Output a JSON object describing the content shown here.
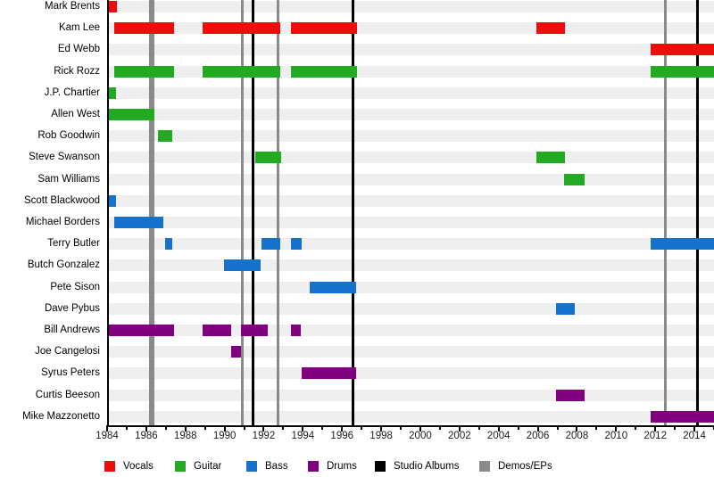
{
  "chart_data": {
    "type": "timeline",
    "subtype": "band-member-gantt",
    "axis": {
      "start": 1984,
      "end": 2015,
      "tick_labels": [
        1984,
        1986,
        1988,
        1990,
        1992,
        1994,
        1996,
        1998,
        2000,
        2002,
        2004,
        2006,
        2008,
        2010,
        2012,
        2014
      ],
      "minor_ticks_every_year": true
    },
    "colors": {
      "vocals": "#ee0d0d",
      "guitar": "#22aa22",
      "bass": "#1672cd",
      "drums": "#800080",
      "album_line": "#000000",
      "demo_line": "#8a8a8a",
      "row_band": "#efefef"
    },
    "members": [
      {
        "name": "Mark Brents",
        "instrument": "vocals",
        "periods": [
          [
            1984.1,
            1984.5
          ]
        ]
      },
      {
        "name": "Kam Lee",
        "instrument": "vocals",
        "periods": [
          [
            1984.35,
            1987.4
          ],
          [
            1988.9,
            1992.85
          ],
          [
            1993.4,
            1996.75
          ],
          [
            2005.95,
            2007.4
          ]
        ]
      },
      {
        "name": "Ed Webb",
        "instrument": "vocals",
        "periods": [
          [
            2011.75,
            2015
          ]
        ]
      },
      {
        "name": "Rick Rozz",
        "instrument": "guitar",
        "periods": [
          [
            1984.35,
            1987.4
          ],
          [
            1988.9,
            1992.85
          ],
          [
            1993.4,
            1996.75
          ],
          [
            2011.75,
            2015
          ]
        ]
      },
      {
        "name": "J.P. Chartier",
        "instrument": "guitar",
        "periods": [
          [
            1984.0,
            1984.45
          ]
        ]
      },
      {
        "name": "Allen West",
        "instrument": "guitar",
        "periods": [
          [
            1984.0,
            1986.4
          ]
        ]
      },
      {
        "name": "Rob Goodwin",
        "instrument": "guitar",
        "periods": [
          [
            1986.6,
            1987.35
          ]
        ]
      },
      {
        "name": "Steve Swanson",
        "instrument": "guitar",
        "periods": [
          [
            1991.55,
            1992.9
          ],
          [
            2005.95,
            2007.4
          ]
        ]
      },
      {
        "name": "Sam Williams",
        "instrument": "guitar",
        "periods": [
          [
            2007.35,
            2008.4
          ]
        ]
      },
      {
        "name": "Scott Blackwood",
        "instrument": "bass",
        "periods": [
          [
            1984.0,
            1984.45
          ]
        ]
      },
      {
        "name": "Michael Borders",
        "instrument": "bass",
        "periods": [
          [
            1984.35,
            1986.85
          ]
        ]
      },
      {
        "name": "Terry Butler",
        "instrument": "bass",
        "periods": [
          [
            1986.95,
            1987.35
          ],
          [
            1991.9,
            1992.85
          ],
          [
            1993.4,
            1993.95
          ],
          [
            2011.75,
            2015
          ]
        ]
      },
      {
        "name": "Butch Gonzalez",
        "instrument": "bass",
        "periods": [
          [
            1989.95,
            1991.85
          ]
        ]
      },
      {
        "name": "Pete Sison",
        "instrument": "bass",
        "periods": [
          [
            1994.35,
            1996.7
          ]
        ]
      },
      {
        "name": "Dave Pybus",
        "instrument": "bass",
        "periods": [
          [
            2006.95,
            2007.9
          ]
        ]
      },
      {
        "name": "Bill Andrews",
        "instrument": "drums",
        "periods": [
          [
            1984.0,
            1987.4
          ],
          [
            1988.9,
            1990.35
          ],
          [
            1990.85,
            1992.2
          ],
          [
            1993.4,
            1993.9
          ]
        ]
      },
      {
        "name": "Joe Cangelosi",
        "instrument": "drums",
        "periods": [
          [
            1990.35,
            1990.85
          ]
        ]
      },
      {
        "name": "Syrus Peters",
        "instrument": "drums",
        "periods": [
          [
            1993.95,
            1996.7
          ]
        ]
      },
      {
        "name": "Curtis Beeson",
        "instrument": "drums",
        "periods": [
          [
            2006.95,
            2008.4
          ]
        ]
      },
      {
        "name": "Mike Mazzonetto",
        "instrument": "drums",
        "periods": [
          [
            2011.75,
            2015
          ]
        ]
      }
    ],
    "releases": [
      {
        "year": 1986.3,
        "type": "demo",
        "wide": true
      },
      {
        "year": 1990.9,
        "type": "demo"
      },
      {
        "year": 1991.45,
        "type": "album"
      },
      {
        "year": 1992.75,
        "type": "demo"
      },
      {
        "year": 1996.55,
        "type": "album"
      },
      {
        "year": 2012.5,
        "type": "demo"
      },
      {
        "year": 2014.15,
        "type": "album"
      }
    ],
    "legend": [
      {
        "label": "Vocals",
        "color": "#ee0d0d"
      },
      {
        "label": "Guitar",
        "color": "#22aa22"
      },
      {
        "label": "Bass",
        "color": "#1672cd"
      },
      {
        "label": "Drums",
        "color": "#800080"
      },
      {
        "label": "Studio Albums",
        "color": "#000000"
      },
      {
        "label": "Demos/EPs",
        "color": "#8a8a8a"
      }
    ]
  }
}
